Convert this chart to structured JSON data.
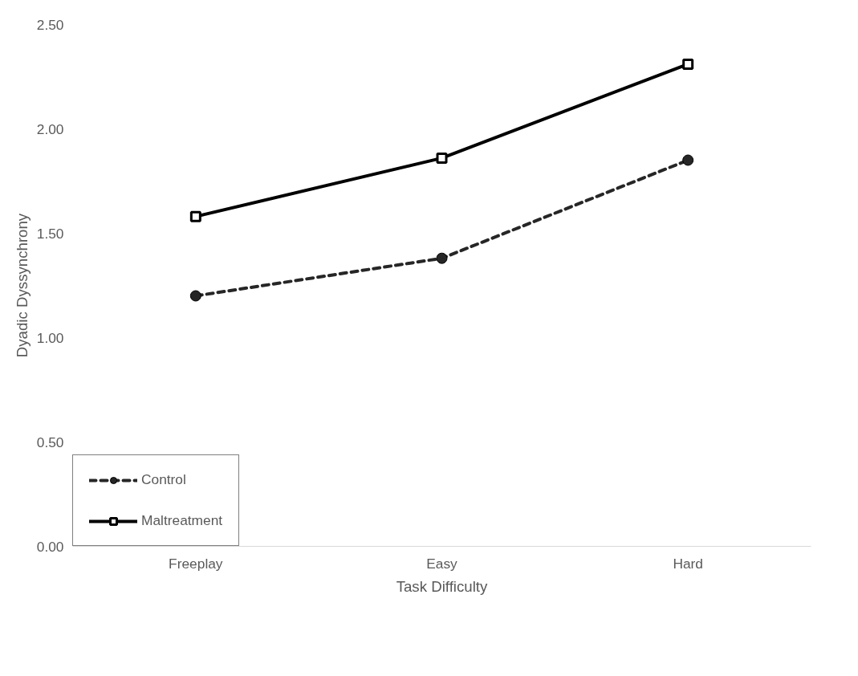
{
  "chart_data": {
    "type": "line",
    "xlabel": "Task Difficulty",
    "ylabel": "Dyadic Dyssynchrony",
    "categories": [
      "Freeplay",
      "Easy",
      "Hard"
    ],
    "series": [
      {
        "name": "Control",
        "color": "#262626",
        "values": [
          1.2,
          1.38,
          1.85
        ],
        "line_style": "dashed",
        "marker": "circle"
      },
      {
        "name": "Maltreatment",
        "color": "#000000",
        "values": [
          1.58,
          1.86,
          2.31
        ],
        "line_style": "solid",
        "marker": "square"
      }
    ],
    "ylim": [
      0,
      2.5
    ],
    "yticks": [
      {
        "value": 0,
        "label": "0.00"
      },
      {
        "value": 0.5,
        "label": "0.50"
      },
      {
        "value": 1,
        "label": "1.00"
      },
      {
        "value": 1.5,
        "label": "1.50"
      },
      {
        "value": 2,
        "label": "2.00"
      },
      {
        "value": 2.5,
        "label": "2.50"
      }
    ],
    "grid": false,
    "legend": "bottom left"
  }
}
